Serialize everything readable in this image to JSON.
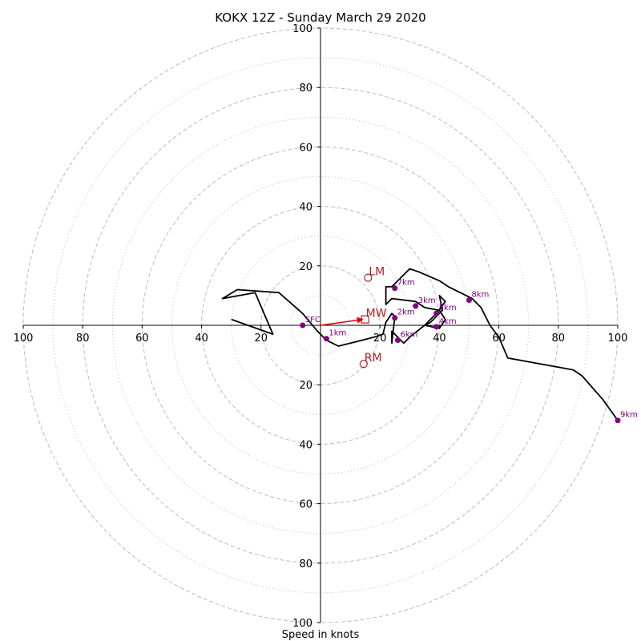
{
  "chart_data": {
    "type": "line",
    "title": "KOKX 12Z - Sunday March 29 2020",
    "xlabel": "Speed in knots",
    "ylabel": "",
    "rings": [
      20,
      40,
      60,
      80,
      100
    ],
    "minor_rings": [
      10,
      30,
      50,
      70,
      90
    ],
    "x_ticks": [
      "100",
      "80",
      "60",
      "40",
      "20",
      "20",
      "40",
      "60",
      "80",
      "100"
    ],
    "y_ticks": [
      "100",
      "80",
      "60",
      "40",
      "20",
      "20",
      "40",
      "60",
      "80",
      "100"
    ],
    "axis_range": [
      -100,
      100
    ],
    "hodograph": {
      "u": [
        -30,
        -16,
        -22,
        -33,
        -28,
        -14,
        -6,
        -1,
        2,
        6,
        14,
        18,
        21,
        22,
        24,
        25,
        24,
        24,
        28,
        30,
        35,
        37,
        39,
        41,
        40,
        42,
        39,
        35,
        40,
        42,
        40,
        35,
        32,
        24,
        22,
        22,
        24,
        26,
        30,
        33,
        40,
        43,
        47,
        51,
        54,
        57,
        60,
        63,
        85,
        88,
        95,
        100
      ],
      "v": [
        2,
        -3,
        11,
        9,
        12,
        11,
        4,
        -2,
        -5,
        -7,
        -5,
        -4,
        -3,
        1,
        4,
        3,
        -6,
        -2,
        -6,
        -4,
        0,
        1,
        3,
        5,
        10,
        8,
        4,
        0,
        -1,
        2,
        5,
        6,
        8,
        9,
        7,
        13,
        13,
        15,
        19,
        18,
        15,
        13,
        11,
        9,
        6,
        0,
        -4,
        -11,
        -15,
        -17,
        -25,
        -32
      ]
    },
    "levels": [
      {
        "label": "SFC",
        "u": -6,
        "v": 0
      },
      {
        "label": "1km",
        "u": 2,
        "v": -4.5
      },
      {
        "label": "2km",
        "u": 25,
        "v": 2.5
      },
      {
        "label": "3km",
        "u": 32,
        "v": 6.5
      },
      {
        "label": "4km",
        "u": 39,
        "v": -0.5
      },
      {
        "label": "5km",
        "u": 39,
        "v": 4
      },
      {
        "label": "6km",
        "u": 26,
        "v": -5
      },
      {
        "label": "7km",
        "u": 25,
        "v": 12.5
      },
      {
        "label": "8km",
        "u": 50,
        "v": 8.5
      },
      {
        "label": "9km",
        "u": 100,
        "v": -32
      }
    ],
    "markers": {
      "lm": {
        "label": "LM",
        "u": 16,
        "v": 16
      },
      "mw": {
        "label": "MW",
        "u": 15,
        "v": 2
      },
      "rm": {
        "label": "RM",
        "u": 14.5,
        "v": -13
      }
    },
    "colors": {
      "line": "#000000",
      "levels": "#800080",
      "markers": "#b22222",
      "arrow": "#e00000",
      "grid": "#bbbbbb"
    }
  }
}
